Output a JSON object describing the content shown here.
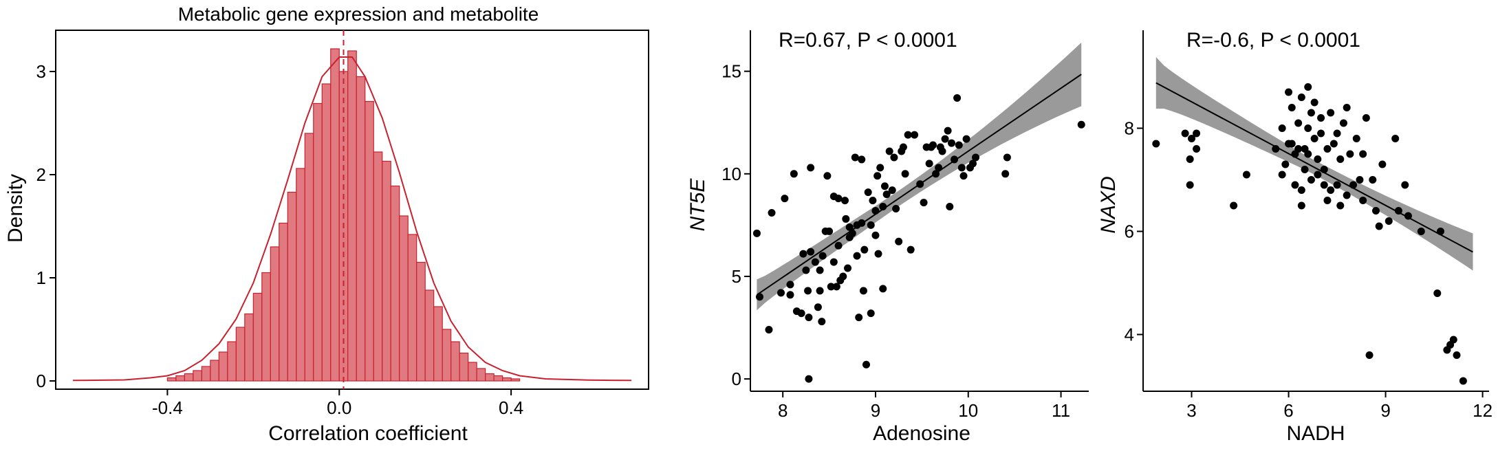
{
  "chart_data": [
    {
      "type": "histogram",
      "title": "Metabolic gene expression and metabolite",
      "xlabel": "Correlation coefficient",
      "ylabel": "Density",
      "xlim": [
        -0.66,
        0.72
      ],
      "ylim": [
        -0.08,
        3.4
      ],
      "xticks": [
        -0.4,
        0.0,
        0.4
      ],
      "xtick_labels": [
        "-0.4",
        "0.0",
        "0.4"
      ],
      "yticks": [
        0,
        1,
        2,
        3
      ],
      "ytick_labels": [
        "0",
        "1",
        "2",
        "3"
      ],
      "bin_width": 0.02,
      "bins_start": -0.4,
      "densities": [
        0.03,
        0.05,
        0.07,
        0.1,
        0.14,
        0.2,
        0.28,
        0.38,
        0.52,
        0.65,
        0.85,
        1.05,
        1.3,
        1.53,
        1.83,
        2.06,
        2.4,
        2.69,
        2.88,
        3.22,
        3.0,
        3.2,
        2.95,
        2.71,
        2.22,
        2.13,
        1.89,
        1.6,
        1.42,
        1.15,
        0.88,
        0.72,
        0.5,
        0.38,
        0.27,
        0.18,
        0.12,
        0.07,
        0.05,
        0.03,
        0.02
      ],
      "kde": [
        [
          -0.62,
          0.005
        ],
        [
          -0.5,
          0.01
        ],
        [
          -0.44,
          0.03
        ],
        [
          -0.4,
          0.05
        ],
        [
          -0.36,
          0.1
        ],
        [
          -0.32,
          0.2
        ],
        [
          -0.28,
          0.36
        ],
        [
          -0.24,
          0.6
        ],
        [
          -0.2,
          0.95
        ],
        [
          -0.16,
          1.42
        ],
        [
          -0.12,
          1.95
        ],
        [
          -0.08,
          2.5
        ],
        [
          -0.04,
          2.95
        ],
        [
          0.0,
          3.14
        ],
        [
          0.03,
          3.14
        ],
        [
          0.06,
          2.95
        ],
        [
          0.1,
          2.55
        ],
        [
          0.14,
          2.02
        ],
        [
          0.18,
          1.45
        ],
        [
          0.22,
          0.95
        ],
        [
          0.26,
          0.58
        ],
        [
          0.3,
          0.33
        ],
        [
          0.34,
          0.18
        ],
        [
          0.38,
          0.1
        ],
        [
          0.42,
          0.05
        ],
        [
          0.48,
          0.02
        ],
        [
          0.58,
          0.008
        ],
        [
          0.68,
          0.005
        ]
      ],
      "mean_line_x": 0.01,
      "colors": {
        "fill": "#e07a80",
        "stroke": "#c8202d"
      },
      "grid": false
    },
    {
      "type": "scatter",
      "annotation": "R=0.67, P < 0.0001",
      "xlabel": "Adenosine",
      "ylabel": "NT5E",
      "xlim": [
        7.65,
        11.3
      ],
      "ylim": [
        -0.6,
        17
      ],
      "xticks": [
        8,
        9,
        10,
        11
      ],
      "xtick_labels": [
        "8",
        "9",
        "10",
        "11"
      ],
      "yticks": [
        0,
        5,
        10,
        15
      ],
      "ytick_labels": [
        "0",
        "5",
        "10",
        "15"
      ],
      "fit": {
        "x": [
          7.72,
          11.22
        ],
        "y": [
          4.1,
          14.85
        ]
      },
      "band_halfwidth": {
        "at_low": 0.75,
        "at_center": 0.38,
        "at_high": 1.55,
        "center_x": 9.2
      },
      "points": [
        [
          7.72,
          7.1
        ],
        [
          7.75,
          4.0
        ],
        [
          7.85,
          2.4
        ],
        [
          7.88,
          8.1
        ],
        [
          7.98,
          4.2
        ],
        [
          8.02,
          8.8
        ],
        [
          8.08,
          4.1
        ],
        [
          8.08,
          4.6
        ],
        [
          8.12,
          10.0
        ],
        [
          8.15,
          3.3
        ],
        [
          8.2,
          3.2
        ],
        [
          8.22,
          6.1
        ],
        [
          8.25,
          5.3
        ],
        [
          8.27,
          4.3
        ],
        [
          8.28,
          3.0
        ],
        [
          8.28,
          0.0
        ],
        [
          8.3,
          10.3
        ],
        [
          8.3,
          6.2
        ],
        [
          8.35,
          5.7
        ],
        [
          8.38,
          3.5
        ],
        [
          8.4,
          5.3
        ],
        [
          8.4,
          4.3
        ],
        [
          8.42,
          2.8
        ],
        [
          8.43,
          6.0
        ],
        [
          8.46,
          7.2
        ],
        [
          8.48,
          9.9
        ],
        [
          8.5,
          7.2
        ],
        [
          8.52,
          4.5
        ],
        [
          8.55,
          8.9
        ],
        [
          8.55,
          5.7
        ],
        [
          8.58,
          4.5
        ],
        [
          8.6,
          8.8
        ],
        [
          8.6,
          6.5
        ],
        [
          8.62,
          4.8
        ],
        [
          8.65,
          5.0
        ],
        [
          8.67,
          8.7
        ],
        [
          8.68,
          7.8
        ],
        [
          8.7,
          5.4
        ],
        [
          8.72,
          7.4
        ],
        [
          8.72,
          6.9
        ],
        [
          8.75,
          7.1
        ],
        [
          8.78,
          10.8
        ],
        [
          8.8,
          7.5
        ],
        [
          8.8,
          6.0
        ],
        [
          8.82,
          3.0
        ],
        [
          8.85,
          10.7
        ],
        [
          8.85,
          7.6
        ],
        [
          8.87,
          4.3
        ],
        [
          8.88,
          6.3
        ],
        [
          8.9,
          0.7
        ],
        [
          8.92,
          9.1
        ],
        [
          8.95,
          7.5
        ],
        [
          8.95,
          3.2
        ],
        [
          8.97,
          8.7
        ],
        [
          9.0,
          8.2
        ],
        [
          9.0,
          7.0
        ],
        [
          9.02,
          9.9
        ],
        [
          9.03,
          6.1
        ],
        [
          9.05,
          10.3
        ],
        [
          9.08,
          8.4
        ],
        [
          9.08,
          4.4
        ],
        [
          9.1,
          9.4
        ],
        [
          9.12,
          9.0
        ],
        [
          9.15,
          11.1
        ],
        [
          9.18,
          9.2
        ],
        [
          9.2,
          10.8
        ],
        [
          9.22,
          8.3
        ],
        [
          9.25,
          6.7
        ],
        [
          9.28,
          11.1
        ],
        [
          9.3,
          11.3
        ],
        [
          9.32,
          10.0
        ],
        [
          9.35,
          11.9
        ],
        [
          9.38,
          6.3
        ],
        [
          9.42,
          11.9
        ],
        [
          9.48,
          9.5
        ],
        [
          9.52,
          8.6
        ],
        [
          9.55,
          11.3
        ],
        [
          9.58,
          10.5
        ],
        [
          9.6,
          11.3
        ],
        [
          9.62,
          11.4
        ],
        [
          9.65,
          10.0
        ],
        [
          9.68,
          10.3
        ],
        [
          9.7,
          11.3
        ],
        [
          9.72,
          11.1
        ],
        [
          9.75,
          11.7
        ],
        [
          9.78,
          12.1
        ],
        [
          9.8,
          8.4
        ],
        [
          9.82,
          11.5
        ],
        [
          9.85,
          10.7
        ],
        [
          9.88,
          13.7
        ],
        [
          9.9,
          11.4
        ],
        [
          9.93,
          10.3
        ],
        [
          9.95,
          9.9
        ],
        [
          9.98,
          11.7
        ],
        [
          10.02,
          10.3
        ],
        [
          10.05,
          10.5
        ],
        [
          10.08,
          10.8
        ],
        [
          10.4,
          10.0
        ],
        [
          10.42,
          10.8
        ],
        [
          11.22,
          12.4
        ]
      ],
      "grid": false
    },
    {
      "type": "scatter",
      "annotation": "R=-0.6, P < 0.0001",
      "xlabel": "NADH",
      "ylabel": "NAXD",
      "xlim": [
        1.5,
        12.2
      ],
      "ylim": [
        2.9,
        9.9
      ],
      "xticks": [
        3,
        6,
        9,
        12
      ],
      "xtick_labels": [
        "3",
        "6",
        "9",
        "12"
      ],
      "yticks": [
        4,
        6,
        8
      ],
      "ytick_labels": [
        "4",
        "6",
        "8"
      ],
      "fit": {
        "x": [
          1.9,
          11.7
        ],
        "y": [
          8.88,
          5.6
        ]
      },
      "band_halfwidth": {
        "at_low": 0.5,
        "at_center": 0.14,
        "at_high": 0.36,
        "center_x": 6.6
      },
      "points": [
        [
          1.9,
          7.7
        ],
        [
          2.8,
          7.9
        ],
        [
          2.95,
          7.4
        ],
        [
          3.0,
          7.8
        ],
        [
          3.15,
          7.6
        ],
        [
          2.95,
          6.9
        ],
        [
          3.15,
          7.9
        ],
        [
          4.3,
          6.5
        ],
        [
          4.7,
          7.1
        ],
        [
          5.6,
          7.6
        ],
        [
          5.8,
          7.1
        ],
        [
          5.8,
          8.0
        ],
        [
          5.9,
          7.3
        ],
        [
          6.0,
          8.7
        ],
        [
          6.0,
          7.7
        ],
        [
          6.1,
          8.4
        ],
        [
          6.1,
          7.7
        ],
        [
          6.2,
          6.9
        ],
        [
          6.2,
          7.5
        ],
        [
          6.3,
          8.1
        ],
        [
          6.3,
          7.6
        ],
        [
          6.4,
          6.5
        ],
        [
          6.4,
          6.8
        ],
        [
          6.4,
          8.6
        ],
        [
          6.5,
          7.2
        ],
        [
          6.5,
          7.6
        ],
        [
          6.6,
          8.0
        ],
        [
          6.6,
          8.8
        ],
        [
          6.6,
          7.5
        ],
        [
          6.7,
          8.3
        ],
        [
          6.7,
          7.0
        ],
        [
          6.8,
          8.5
        ],
        [
          6.8,
          7.8
        ],
        [
          6.9,
          7.1
        ],
        [
          6.9,
          7.4
        ],
        [
          7.0,
          7.9
        ],
        [
          7.0,
          8.2
        ],
        [
          7.1,
          6.9
        ],
        [
          7.1,
          7.2
        ],
        [
          7.2,
          6.6
        ],
        [
          7.2,
          7.6
        ],
        [
          7.3,
          6.8
        ],
        [
          7.3,
          8.3
        ],
        [
          7.4,
          7.7
        ],
        [
          7.5,
          6.9
        ],
        [
          7.5,
          7.9
        ],
        [
          7.6,
          6.5
        ],
        [
          7.6,
          7.4
        ],
        [
          7.7,
          8.1
        ],
        [
          7.8,
          6.7
        ],
        [
          7.8,
          8.4
        ],
        [
          7.9,
          7.5
        ],
        [
          8.0,
          6.9
        ],
        [
          8.1,
          7.8
        ],
        [
          8.2,
          7.0
        ],
        [
          8.3,
          6.6
        ],
        [
          8.3,
          7.5
        ],
        [
          8.4,
          8.2
        ],
        [
          8.5,
          3.6
        ],
        [
          8.6,
          7.0
        ],
        [
          8.7,
          6.4
        ],
        [
          8.8,
          6.1
        ],
        [
          8.9,
          7.3
        ],
        [
          9.1,
          6.2
        ],
        [
          9.3,
          7.8
        ],
        [
          9.4,
          6.4
        ],
        [
          9.6,
          6.9
        ],
        [
          9.7,
          6.3
        ],
        [
          10.1,
          6.0
        ],
        [
          10.6,
          4.8
        ],
        [
          10.7,
          6.0
        ],
        [
          10.9,
          3.7
        ],
        [
          11.0,
          3.8
        ],
        [
          11.1,
          3.9
        ],
        [
          11.2,
          3.6
        ],
        [
          11.4,
          3.1
        ]
      ],
      "grid": false
    }
  ]
}
